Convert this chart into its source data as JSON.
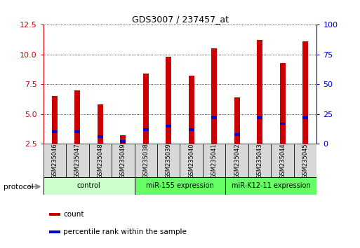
{
  "title": "GDS3007 / 237457_at",
  "samples": [
    "GSM235046",
    "GSM235047",
    "GSM235048",
    "GSM235049",
    "GSM235038",
    "GSM235039",
    "GSM235040",
    "GSM235041",
    "GSM235042",
    "GSM235043",
    "GSM235044",
    "GSM235045"
  ],
  "count_values": [
    6.5,
    7.0,
    5.8,
    3.2,
    8.4,
    9.8,
    8.2,
    10.5,
    6.4,
    11.2,
    9.3,
    11.1
  ],
  "percentile_values": [
    3.5,
    3.5,
    3.1,
    2.7,
    3.7,
    4.0,
    3.7,
    4.7,
    3.3,
    4.7,
    4.2,
    4.7
  ],
  "groups": [
    {
      "label": "control",
      "indices": [
        0,
        1,
        2,
        3
      ],
      "color": "#ccffcc"
    },
    {
      "label": "miR-155 expression",
      "indices": [
        4,
        5,
        6,
        7
      ],
      "color": "#66ff66"
    },
    {
      "label": "miR-K12-11 expression",
      "indices": [
        8,
        9,
        10,
        11
      ],
      "color": "#66ff66"
    }
  ],
  "bar_color": "#cc0000",
  "percentile_color": "#0000cc",
  "ylim_left": [
    2.5,
    12.5
  ],
  "ylim_right": [
    0,
    100
  ],
  "yticks_left": [
    2.5,
    5.0,
    7.5,
    10.0,
    12.5
  ],
  "yticks_right": [
    0,
    25,
    50,
    75,
    100
  ],
  "bar_width": 0.25,
  "percentile_bar_height": 0.22,
  "legend_items": [
    {
      "label": "count",
      "color": "#cc0000"
    },
    {
      "label": "percentile rank within the sample",
      "color": "#0000cc"
    }
  ],
  "protocol_label": "protocol",
  "title_color": "#000000",
  "left_axis_color": "#cc0000",
  "right_axis_color": "#0000cc"
}
